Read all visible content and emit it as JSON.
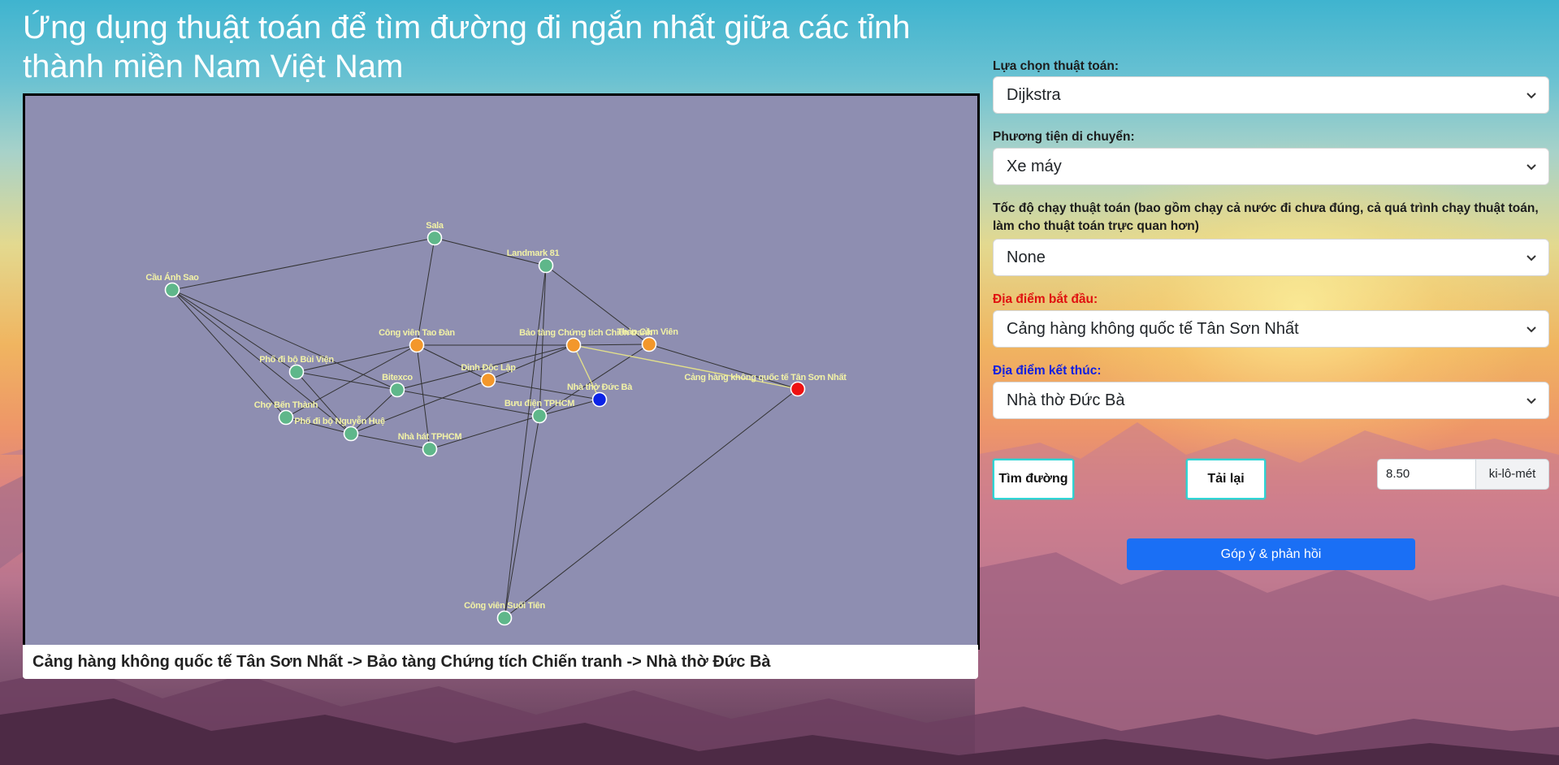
{
  "page": {
    "title": "Ứng dụng thuật toán để tìm đường đi ngắn nhất giữa các tỉnh thành miền Nam Việt Nam"
  },
  "colors": {
    "graph_background": "#8e8eb1",
    "node_default": "#5fb78a",
    "node_visited": "#f3972b",
    "node_start": "#ee1111",
    "node_end": "#0b22e6",
    "label": "#f2f2a6",
    "edge": "#333333",
    "edge_path": "#e3e08a",
    "feedback_button": "#1a6ff5",
    "button_border": "#2fd6d6"
  },
  "graph": {
    "nodes": [
      {
        "id": "sala",
        "label": "Sala",
        "state": "default"
      },
      {
        "id": "landmark",
        "label": "Landmark 81",
        "state": "default"
      },
      {
        "id": "caunhsao",
        "label": "Cầu Ánh Sao",
        "state": "default"
      },
      {
        "id": "taodan",
        "label": "Công viên Tao Đàn",
        "state": "visited"
      },
      {
        "id": "baotang",
        "label": "Bảo tàng Chứng tích Chiến tranh",
        "state": "visited"
      },
      {
        "id": "thaocamvien",
        "label": "Thảo Cầm Viên",
        "state": "visited"
      },
      {
        "id": "buivien",
        "label": "Phố đi bộ Bùi Viện",
        "state": "default"
      },
      {
        "id": "bitexco",
        "label": "Bitexco",
        "state": "default"
      },
      {
        "id": "dinhdoclap",
        "label": "Dinh Độc Lập",
        "state": "visited"
      },
      {
        "id": "nhathoducba",
        "label": "Nhà thờ Đức Bà",
        "state": "end"
      },
      {
        "id": "tansonnhat",
        "label": "Cảng hàng không quốc tế Tân Sơn Nhất",
        "state": "start"
      },
      {
        "id": "chobenthanh",
        "label": "Chợ Bến Thành",
        "state": "default"
      },
      {
        "id": "nguyenhue",
        "label": "Phố đi bộ Nguyễn Huệ",
        "state": "default"
      },
      {
        "id": "buudien",
        "label": "Bưu điện TPHCM",
        "state": "default"
      },
      {
        "id": "nhahat",
        "label": "Nhà hát TPHCM",
        "state": "default"
      },
      {
        "id": "suoitien",
        "label": "Công viên Suối Tiên",
        "state": "default"
      }
    ],
    "edges": [
      [
        "caunhsao",
        "sala"
      ],
      [
        "sala",
        "landmark"
      ],
      [
        "sala",
        "taodan"
      ],
      [
        "landmark",
        "thaocamvien"
      ],
      [
        "landmark",
        "buudien"
      ],
      [
        "landmark",
        "suoitien"
      ],
      [
        "caunhsao",
        "buivien"
      ],
      [
        "caunhsao",
        "chobenthanh"
      ],
      [
        "caunhsao",
        "nguyenhue"
      ],
      [
        "caunhsao",
        "bitexco"
      ],
      [
        "taodan",
        "baotang"
      ],
      [
        "taodan",
        "buivien"
      ],
      [
        "taodan",
        "chobenthanh"
      ],
      [
        "taodan",
        "nhahat"
      ],
      [
        "taodan",
        "dinhdoclap"
      ],
      [
        "baotang",
        "thaocamvien"
      ],
      [
        "baotang",
        "dinhdoclap"
      ],
      [
        "baotang",
        "bitexco"
      ],
      [
        "thaocamvien",
        "buudien"
      ],
      [
        "thaocamvien",
        "tansonnhat"
      ],
      [
        "dinhdoclap",
        "nhathoducba"
      ],
      [
        "dinhdoclap",
        "nguyenhue"
      ],
      [
        "buivien",
        "nguyenhue"
      ],
      [
        "buivien",
        "bitexco"
      ],
      [
        "chobenthanh",
        "nguyenhue"
      ],
      [
        "bitexco",
        "nguyenhue"
      ],
      [
        "bitexco",
        "buudien"
      ],
      [
        "nhahat",
        "buudien"
      ],
      [
        "nhahat",
        "nguyenhue"
      ],
      [
        "buudien",
        "nhathoducba"
      ],
      [
        "buudien",
        "suoitien"
      ],
      [
        "tansonnhat",
        "suoitien"
      ]
    ],
    "path_edges": [
      [
        "tansonnhat",
        "baotang"
      ],
      [
        "baotang",
        "nhathoducba"
      ]
    ]
  },
  "result": {
    "path_text": "Cảng hàng không quốc tế Tân Sơn Nhất -> Bảo tàng Chứng tích Chiến tranh -> Nhà thờ Đức Bà"
  },
  "controls": {
    "algorithm": {
      "label": "Lựa chọn thuật toán:",
      "value": "Dijkstra"
    },
    "vehicle": {
      "label": "Phương tiện di chuyển:",
      "value": "Xe máy"
    },
    "speed": {
      "label": "Tốc độ chạy thuật toán (bao gồm chạy cả nước đi chưa đúng, cả quá trình chạy thuật toán, làm cho thuật toán trực quan hơn)",
      "value": "None"
    },
    "start": {
      "label": "Địa điểm bắt đầu:",
      "value": "Cảng hàng không quốc tế Tân Sơn Nhất",
      "label_color": "#e01010"
    },
    "end": {
      "label": "Địa điểm kết thúc:",
      "value": "Nhà thờ Đức Bà",
      "label_color": "#1020e0"
    },
    "find_button": "Tìm đường",
    "reload_button": "Tải lại",
    "distance": {
      "value": "8.50",
      "unit": "ki-lô-mét"
    },
    "feedback_button": "Góp ý & phản hồi"
  }
}
